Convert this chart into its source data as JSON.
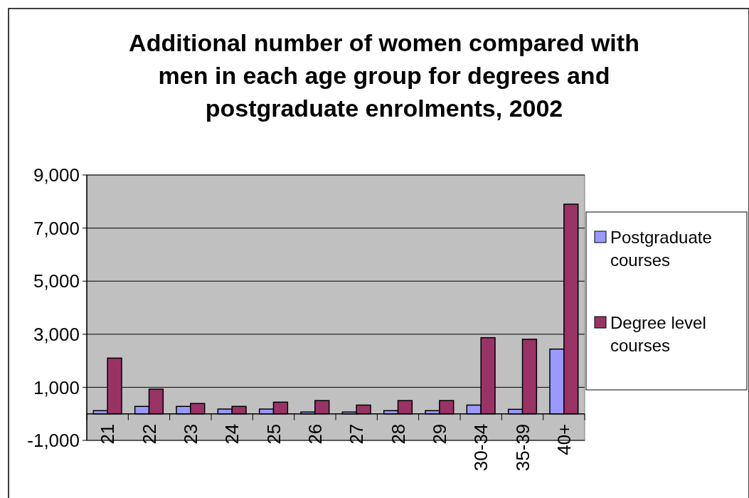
{
  "chart_data": {
    "type": "bar",
    "title": "Additional number of women compared with men in each age group for degrees and postgraduate enrolments, 2002",
    "categories": [
      "21",
      "22",
      "23",
      "24",
      "25",
      "26",
      "27",
      "28",
      "29",
      "30-34",
      "35-39",
      "40+"
    ],
    "series": [
      {
        "name": "Postgraduate courses",
        "color": "#9999ff",
        "values": [
          120,
          280,
          280,
          180,
          180,
          70,
          70,
          120,
          120,
          330,
          170,
          2440
        ]
      },
      {
        "name": "Degree level courses",
        "color": "#993366",
        "values": [
          2100,
          930,
          390,
          280,
          440,
          500,
          330,
          500,
          500,
          2870,
          2810,
          7900
        ]
      }
    ],
    "ylim": [
      -1000,
      9000
    ],
    "yticks": [
      {
        "value": -1000,
        "label": "-1,000"
      },
      {
        "value": 1000,
        "label": "1,000"
      },
      {
        "value": 3000,
        "label": "3,000"
      },
      {
        "value": 5000,
        "label": "5,000"
      },
      {
        "value": 7000,
        "label": "7,000"
      },
      {
        "value": 9000,
        "label": "9,000"
      }
    ],
    "grid": "y",
    "legend": "right"
  }
}
